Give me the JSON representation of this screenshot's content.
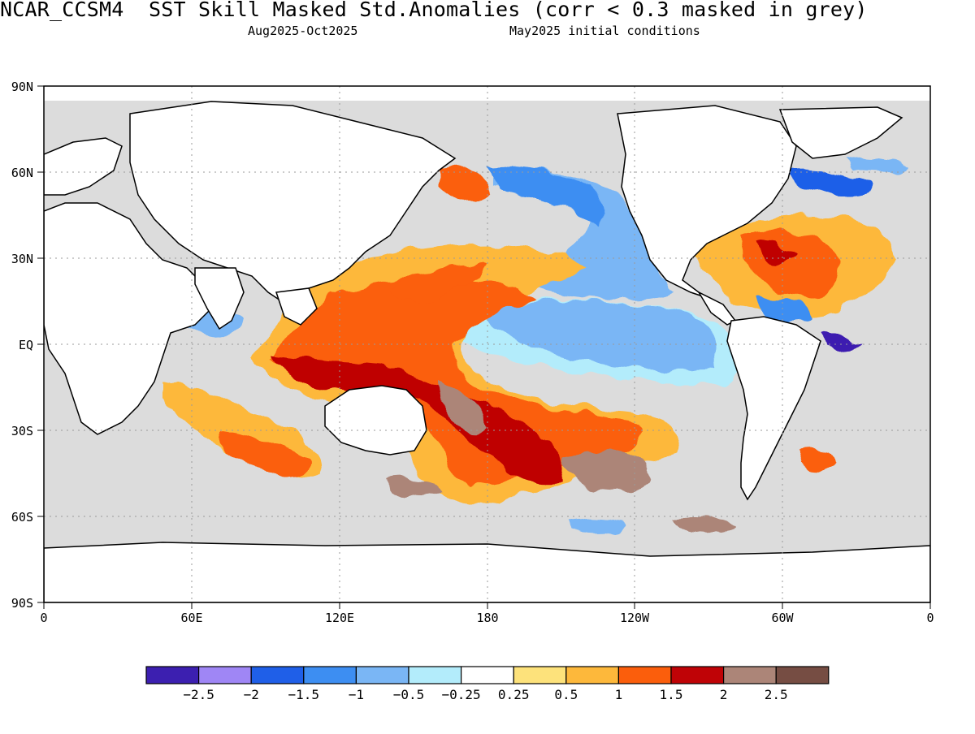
{
  "header": {
    "title": "NCAR_CCSM4  SST Skill Masked Std.Anomalies (corr < 0.3 masked in grey)",
    "period": "Aug2025-Oct2025",
    "initial_conditions": "May2025 initial conditions"
  },
  "map": {
    "lat_labels": [
      "90N",
      "60N",
      "30N",
      "EQ",
      "30S",
      "60S",
      "90S"
    ],
    "lon_labels": [
      "0",
      "60E",
      "120E",
      "180",
      "120W",
      "60W",
      "0"
    ],
    "mask_color": "#dcdcdc",
    "land_color": "#ffffff",
    "gridlines": true
  },
  "colorbar": {
    "colors": [
      "#3c1fb0",
      "#9f86f5",
      "#1f5fe8",
      "#3d8ef2",
      "#7ab6f5",
      "#b3ecfb",
      "#ffffff",
      "#fde27b",
      "#fdb83b",
      "#fb5e0c",
      "#bf0306",
      "#ac8578",
      "#764d43"
    ],
    "tick_labels": [
      "-2.5",
      "-2",
      "-1.5",
      "-1",
      "-0.5",
      "-0.25",
      "0.25",
      "0.5",
      "1",
      "1.5",
      "2",
      "2.5"
    ]
  }
}
